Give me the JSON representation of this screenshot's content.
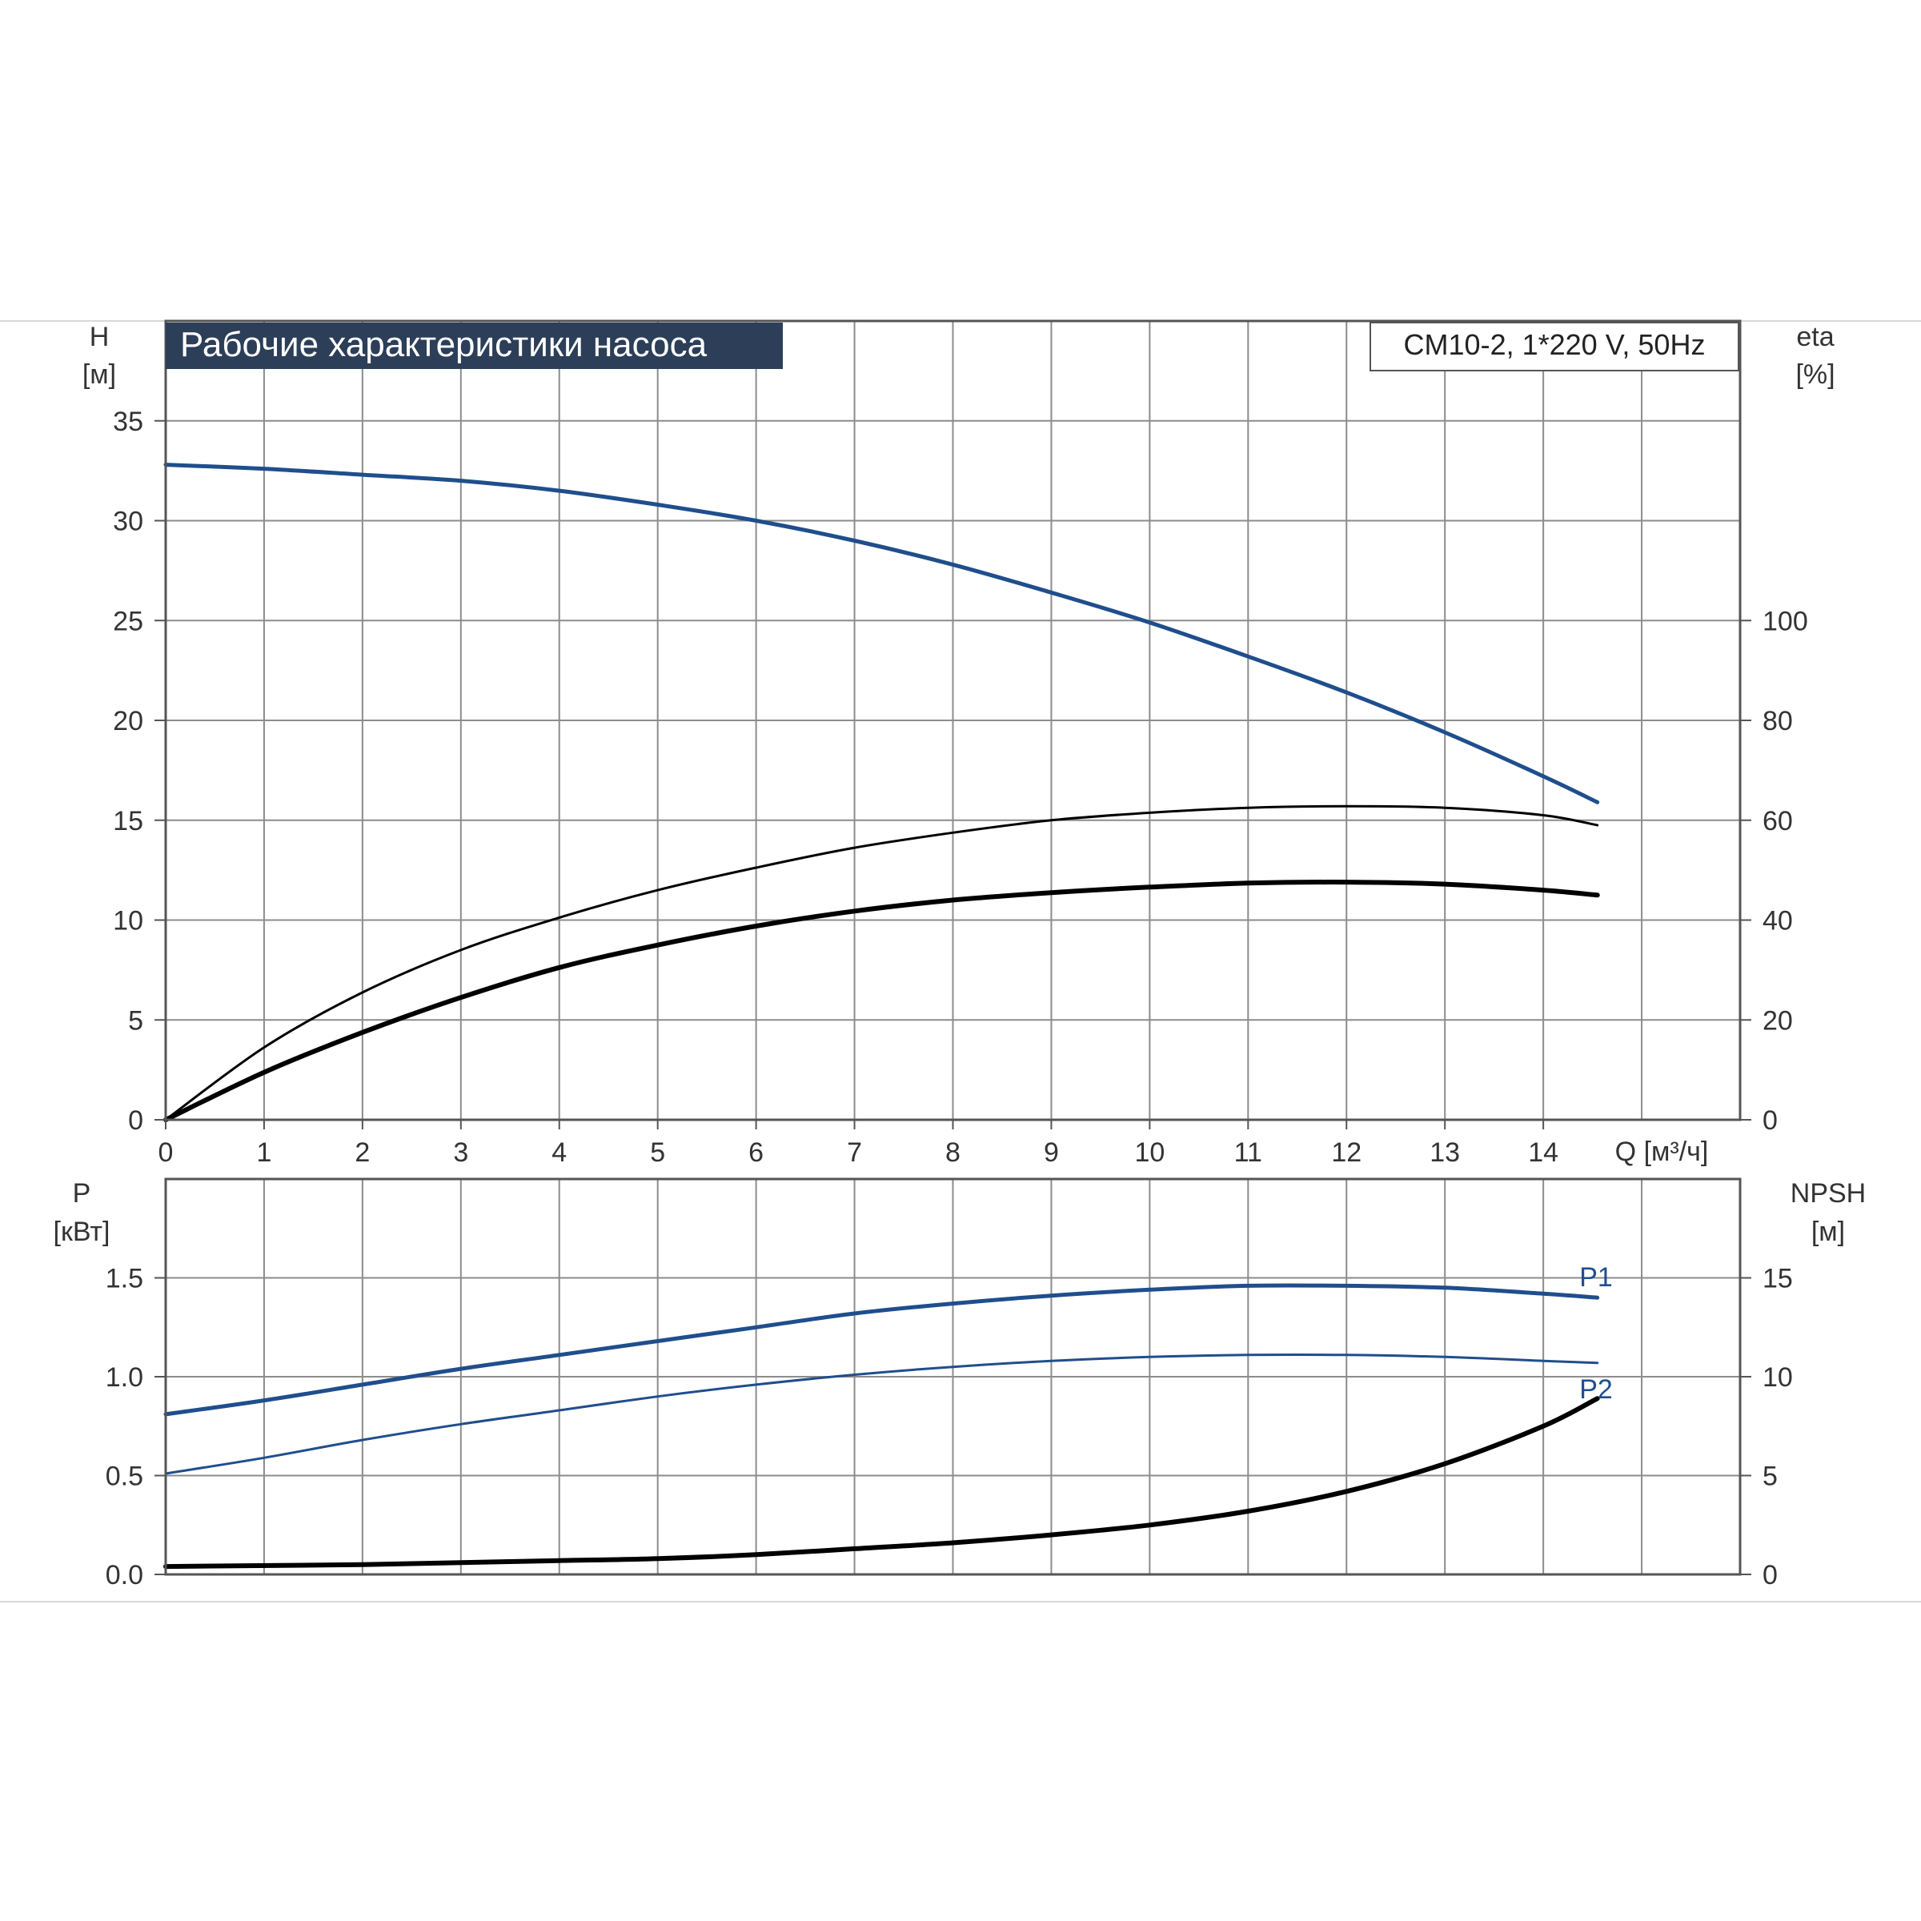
{
  "title": "Рабочие характеристики насоса",
  "model_label": "CM10-2, 1*220 V, 50Hz",
  "colors": {
    "blue": "#1f4e8c",
    "black": "#000000",
    "grid": "#8c8c8c",
    "title_bg": "#2c3e58",
    "title_fg": "#ffffff"
  },
  "chart_data": [
    {
      "type": "line",
      "panel": "top",
      "xlabel": "Q [м³/ч]",
      "x_ticks": [
        "0",
        "1",
        "2",
        "3",
        "4",
        "5",
        "6",
        "7",
        "8",
        "9",
        "10",
        "11",
        "12",
        "13",
        "14"
      ],
      "xlim": [
        0,
        16
      ],
      "left_axis": {
        "label_line1": "H",
        "label_line2": "[м]",
        "ticks": [
          "0",
          "5",
          "10",
          "15",
          "20",
          "25",
          "30",
          "35"
        ],
        "ylim": [
          0,
          40
        ]
      },
      "right_axis": {
        "label_line1": "eta",
        "label_line2": "[%]",
        "ticks": [
          "0",
          "20",
          "40",
          "60",
          "80",
          "100"
        ],
        "ylim": [
          0,
          160
        ]
      },
      "grid": true,
      "series": [
        {
          "axis": "left",
          "color": "blue",
          "width": 5,
          "x": [
            0,
            1,
            2,
            3,
            4,
            5,
            6,
            7,
            8,
            9,
            10,
            11,
            12,
            13,
            14,
            14.55
          ],
          "y": [
            32.8,
            32.6,
            32.3,
            32.0,
            31.5,
            30.8,
            30.0,
            29.0,
            27.8,
            26.4,
            24.9,
            23.2,
            21.4,
            19.4,
            17.2,
            15.9
          ]
        },
        {
          "axis": "right",
          "color": "black",
          "width": 3,
          "x": [
            0,
            1,
            2,
            3,
            4,
            5,
            6,
            7,
            8,
            9,
            10,
            11,
            12,
            13,
            14,
            14.55
          ],
          "y": [
            0,
            14.5,
            25.5,
            34,
            40.5,
            46,
            50.5,
            54.5,
            57.5,
            60,
            61.5,
            62.5,
            62.8,
            62.5,
            61,
            59
          ]
        },
        {
          "axis": "right",
          "color": "black",
          "width": 6,
          "x": [
            0,
            1,
            2,
            3,
            4,
            5,
            6,
            7,
            8,
            9,
            10,
            11,
            12,
            13,
            14,
            14.55
          ],
          "y": [
            0,
            9.5,
            17.5,
            24.5,
            30.5,
            35,
            38.8,
            41.8,
            44,
            45.5,
            46.6,
            47.4,
            47.6,
            47.2,
            46,
            45
          ]
        }
      ]
    },
    {
      "type": "line",
      "panel": "bottom",
      "xlim": [
        0,
        16
      ],
      "left_axis": {
        "label_line1": "P",
        "label_line2": "[кВт]",
        "ticks": [
          "0.0",
          "0.5",
          "1.0",
          "1.5"
        ],
        "ylim": [
          0,
          2.0
        ]
      },
      "right_axis": {
        "label_line1": "NPSH",
        "label_line2": "[м]",
        "ticks": [
          "0",
          "5",
          "10",
          "15"
        ],
        "ylim": [
          0,
          20
        ]
      },
      "grid": true,
      "series": [
        {
          "name": "P1",
          "axis": "left",
          "color": "blue",
          "width": 5,
          "x": [
            0,
            1,
            2,
            3,
            4,
            5,
            6,
            7,
            8,
            9,
            10,
            11,
            12,
            13,
            14,
            14.55
          ],
          "y": [
            0.81,
            0.88,
            0.96,
            1.04,
            1.11,
            1.18,
            1.25,
            1.32,
            1.37,
            1.41,
            1.44,
            1.46,
            1.46,
            1.45,
            1.42,
            1.4
          ]
        },
        {
          "name": "P2",
          "axis": "left",
          "color": "blue",
          "width": 3,
          "x": [
            0,
            1,
            2,
            3,
            4,
            5,
            6,
            7,
            8,
            9,
            10,
            11,
            12,
            13,
            14,
            14.55
          ],
          "y": [
            0.51,
            0.59,
            0.68,
            0.76,
            0.83,
            0.9,
            0.96,
            1.01,
            1.05,
            1.08,
            1.1,
            1.11,
            1.11,
            1.1,
            1.08,
            1.07
          ]
        },
        {
          "axis": "right",
          "color": "black",
          "width": 6,
          "x": [
            0,
            2,
            3,
            4,
            5,
            6,
            7,
            8,
            9,
            10,
            11,
            12,
            13,
            14,
            14.55
          ],
          "y": [
            0.4,
            0.5,
            0.6,
            0.7,
            0.8,
            1.0,
            1.3,
            1.6,
            2.0,
            2.5,
            3.2,
            4.2,
            5.6,
            7.5,
            8.9
          ]
        }
      ]
    }
  ]
}
